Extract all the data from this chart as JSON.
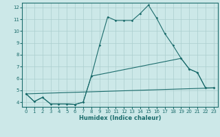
{
  "xlabel": "Humidex (Indice chaleur)",
  "bg_color": "#cce8e8",
  "grid_color": "#aacece",
  "line_color": "#1a6b6b",
  "xlim": [
    -0.5,
    23.5
  ],
  "ylim": [
    3.6,
    12.4
  ],
  "xticks": [
    0,
    1,
    2,
    3,
    4,
    5,
    6,
    7,
    8,
    9,
    10,
    11,
    12,
    13,
    14,
    15,
    16,
    17,
    18,
    19,
    20,
    21,
    22,
    23
  ],
  "yticks": [
    4,
    5,
    6,
    7,
    8,
    9,
    10,
    11,
    12
  ],
  "line1_x": [
    0,
    1,
    2,
    3,
    4,
    5,
    6,
    7,
    8,
    9,
    10,
    11,
    12,
    13,
    14,
    15,
    16,
    17,
    18,
    19,
    20,
    21,
    22,
    23
  ],
  "line1_y": [
    4.7,
    4.05,
    4.4,
    3.85,
    3.85,
    3.85,
    3.8,
    4.0,
    6.2,
    8.8,
    11.2,
    10.9,
    10.9,
    10.9,
    11.5,
    12.2,
    11.1,
    9.8,
    8.8,
    7.7,
    6.8,
    6.5,
    5.2,
    5.2
  ],
  "line2_x": [
    0,
    1,
    2,
    3,
    4,
    5,
    6,
    7,
    8,
    19,
    20,
    21,
    22,
    23
  ],
  "line2_y": [
    4.7,
    4.05,
    4.4,
    3.85,
    3.85,
    3.85,
    3.8,
    4.0,
    6.2,
    7.7,
    6.8,
    6.5,
    5.2,
    5.2
  ],
  "line3_x": [
    0,
    23
  ],
  "line3_y": [
    4.7,
    5.2
  ]
}
